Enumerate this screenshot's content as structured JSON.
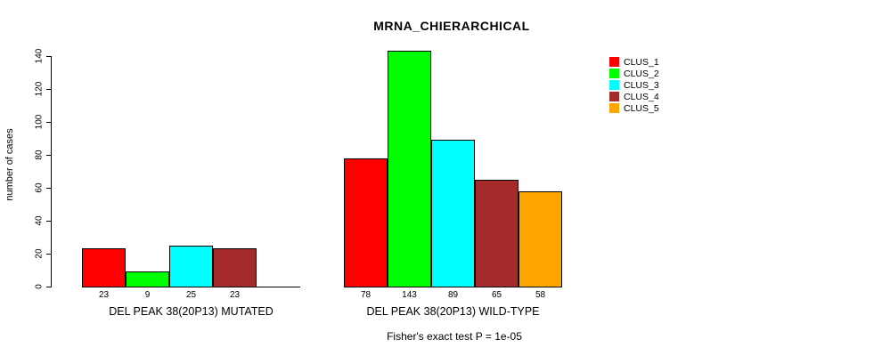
{
  "chart_data": {
    "type": "bar",
    "title": "MRNA_CHIERARCHICAL",
    "xlabel": "",
    "ylabel": "number of cases",
    "ylim": [
      0,
      140
    ],
    "yticks": [
      0,
      20,
      40,
      60,
      80,
      100,
      120,
      140
    ],
    "grid": false,
    "legend_position": "top-right",
    "series": [
      {
        "name": "CLUS_1",
        "color": "#FF0000"
      },
      {
        "name": "CLUS_2",
        "color": "#00FF00"
      },
      {
        "name": "CLUS_3",
        "color": "#00FFFF"
      },
      {
        "name": "CLUS_4",
        "color": "#A52A2A"
      },
      {
        "name": "CLUS_5",
        "color": "#FFA500"
      }
    ],
    "groups": [
      {
        "label": "DEL PEAK 38(20P13) MUTATED",
        "values": [
          23,
          9,
          25,
          23,
          0
        ],
        "bar_labels": [
          "23",
          "9",
          "25",
          "23",
          ""
        ]
      },
      {
        "label": "DEL PEAK 38(20P13) WILD-TYPE",
        "values": [
          78,
          143,
          89,
          65,
          58
        ],
        "bar_labels": [
          "78",
          "143",
          "89",
          "65",
          "58"
        ]
      }
    ],
    "annotation": "Fisher's exact test P = 1e-05"
  }
}
